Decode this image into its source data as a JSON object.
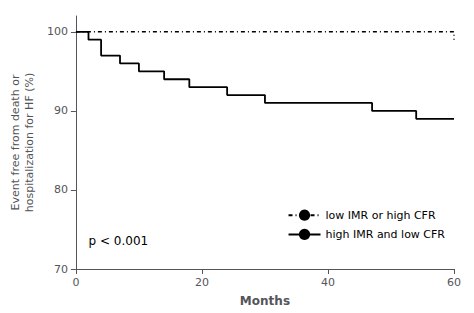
{
  "chart_data": {
    "type": "step",
    "xlabel": "Months",
    "ylabel": "Event free from death or\nhospitalization for HF (%)",
    "xlim": [
      0,
      60
    ],
    "xticks": [
      0,
      20,
      40,
      60
    ],
    "ylim": [
      70,
      102
    ],
    "yticks": [
      70,
      80,
      90,
      100
    ],
    "grid": false,
    "legend": "lower right",
    "annotations": [
      {
        "text": "p < 0.001",
        "x": 2,
        "y": 73.5
      }
    ],
    "series": [
      {
        "name": "low IMR or high CFR",
        "color": "#000000",
        "line_style": "dashdot",
        "x": [
          0,
          56,
          60
        ],
        "values": [
          100,
          100,
          99
        ]
      },
      {
        "name": "high IMR and low CFR",
        "color": "#000000",
        "line_style": "solid",
        "x": [
          0,
          2,
          4,
          7,
          10,
          14,
          18,
          24,
          30,
          47,
          54,
          60
        ],
        "values": [
          100,
          99,
          97,
          96,
          95,
          94,
          93,
          92,
          91,
          90,
          89,
          89
        ]
      }
    ]
  }
}
